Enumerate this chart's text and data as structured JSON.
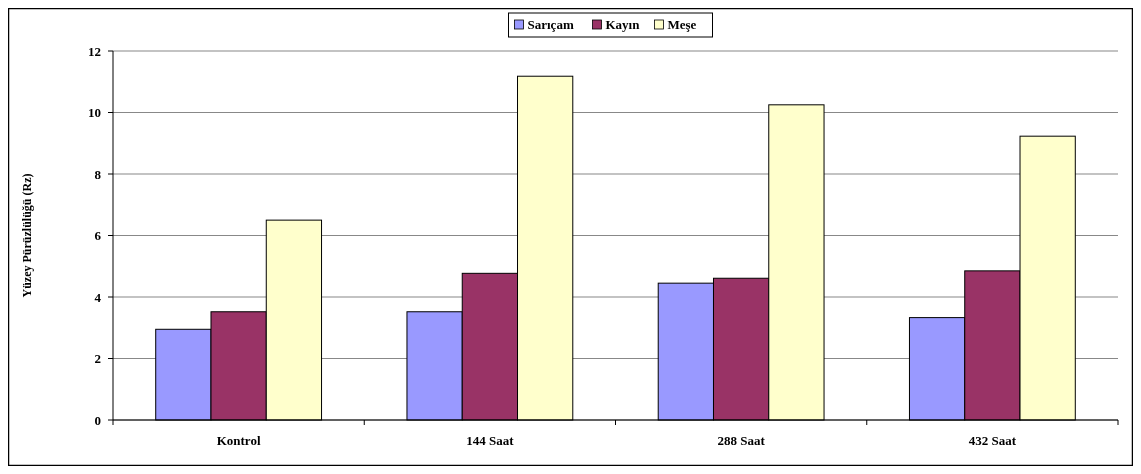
{
  "chart_data": {
    "type": "bar",
    "ylabel": "Yüzey Pürüzlülüğü (Rz)",
    "categories": [
      "Kontrol",
      "144 Saat",
      "288 Saat",
      "432 Saat"
    ],
    "series": [
      {
        "name": "Sarıçam",
        "color": "#9999ff",
        "values": [
          2.95,
          3.52,
          4.45,
          3.33
        ]
      },
      {
        "name": "Kayın",
        "color": "#993366",
        "values": [
          3.52,
          4.77,
          4.61,
          4.85
        ]
      },
      {
        "name": "Meşe",
        "color": "#ffffcc",
        "values": [
          6.5,
          11.18,
          10.25,
          9.23
        ]
      }
    ],
    "ylim": [
      0,
      12
    ],
    "yticks": [
      0,
      2,
      4,
      6,
      8,
      10,
      12
    ],
    "grid": "y",
    "legend": "top"
  }
}
